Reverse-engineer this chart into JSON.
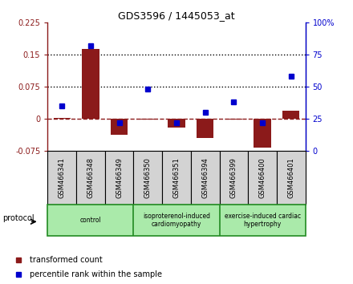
{
  "title": "GDS3596 / 1445053_at",
  "samples": [
    "GSM466341",
    "GSM466348",
    "GSM466349",
    "GSM466350",
    "GSM466351",
    "GSM466394",
    "GSM466399",
    "GSM466400",
    "GSM466401"
  ],
  "transformed_count": [
    0.001,
    0.163,
    -0.038,
    -0.002,
    -0.022,
    -0.045,
    -0.003,
    -0.068,
    0.018
  ],
  "percentile_rank": [
    35,
    82,
    22,
    48,
    22,
    30,
    38,
    22,
    58
  ],
  "ylim_left": [
    -0.075,
    0.225
  ],
  "ylim_right": [
    0,
    100
  ],
  "yticks_left": [
    -0.075,
    0,
    0.075,
    0.15,
    0.225
  ],
  "ytick_labels_left": [
    "-0.075",
    "0",
    "0.075",
    "0.15",
    "0.225"
  ],
  "yticks_right": [
    0,
    25,
    50,
    75,
    100
  ],
  "ytick_labels_right": [
    "0",
    "25",
    "50",
    "75",
    "100%"
  ],
  "hlines": [
    0.075,
    0.15
  ],
  "bar_color": "#8B1A1A",
  "square_color": "#0000CD",
  "groups": [
    {
      "label": "control",
      "start": 0,
      "end": 3,
      "color": "#AAEAAA"
    },
    {
      "label": "isoproterenol-induced\ncardiomyopathy",
      "start": 3,
      "end": 6,
      "color": "#AAEAAA"
    },
    {
      "label": "exercise-induced cardiac\nhypertrophy",
      "start": 6,
      "end": 9,
      "color": "#AAEAAA"
    }
  ],
  "legend_red_label": "transformed count",
  "legend_blue_label": "percentile rank within the sample",
  "protocol_label": "protocol",
  "background_color": "#ffffff",
  "tick_label_bg": "#D3D3D3",
  "green_border": "#228B22"
}
